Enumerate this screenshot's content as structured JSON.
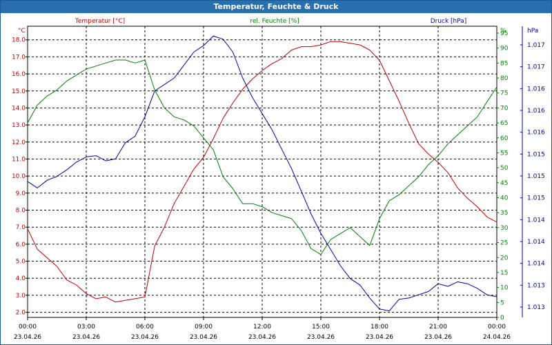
{
  "window": {
    "title": "Temperatur, Feuchte & Druck"
  },
  "colors": {
    "temperature": "#c00000",
    "humidity": "#008000",
    "pressure": "#0000a0",
    "titlebar": "#2a6fad"
  },
  "chart_data": {
    "type": "line",
    "title": "Temperatur, Feuchte & Druck",
    "legend": "top",
    "grid": true,
    "x_ticks": [
      {
        "time": "00:00",
        "date": "23.04.26"
      },
      {
        "time": "03:00",
        "date": "23.04.26"
      },
      {
        "time": "06:00",
        "date": "23.04.26"
      },
      {
        "time": "09:00",
        "date": "23.04.26"
      },
      {
        "time": "12:00",
        "date": "23.04.26"
      },
      {
        "time": "15:00",
        "date": "23.04.26"
      },
      {
        "time": "18:00",
        "date": "23.04.26"
      },
      {
        "time": "21:00",
        "date": "23.04.26"
      },
      {
        "time": "00:00",
        "date": "24.04.26"
      }
    ],
    "x_range_hours": [
      0,
      24
    ],
    "axes": {
      "temperature": {
        "label": "Temperatur [°C]",
        "unit": "°C",
        "ylim": [
          1.7,
          18.8
        ],
        "ticks": [
          "2.0",
          "3.0",
          "4.0",
          "5.0",
          "6.0",
          "7.0",
          "8.0",
          "9.0",
          "10.0",
          "11.0",
          "12.0",
          "13.0",
          "14.0",
          "15.0",
          "16.0",
          "17.0",
          "18.0"
        ]
      },
      "humidity": {
        "label": "rel. Feuchte [%]",
        "unit": "%",
        "ylim": [
          0,
          97.3
        ],
        "ticks": [
          "0",
          "5",
          "10",
          "15",
          "20",
          "25",
          "30",
          "35",
          "40",
          "45",
          "50",
          "55",
          "60",
          "65",
          "70",
          "75",
          "80",
          "85",
          "90",
          "95"
        ]
      },
      "pressure": {
        "label": "Druck [hPa]",
        "unit": "hPa",
        "ylim": [
          1012.8,
          1017.3
        ],
        "ticks": [
          "1.013",
          "1.013",
          "1.014",
          "1.014",
          "1.014",
          "1.015",
          "1.015",
          "1.015",
          "1.016",
          "1.016",
          "1.016",
          "1.017",
          "1.017"
        ]
      }
    },
    "series": [
      {
        "name": "Temperatur",
        "axis": "temperature",
        "color": "#c00000",
        "x": [
          0,
          0.5,
          1,
          1.5,
          2,
          2.5,
          3,
          3.5,
          4,
          4.5,
          5,
          5.5,
          6,
          6.5,
          7,
          7.5,
          8,
          8.5,
          9,
          9.5,
          10,
          10.5,
          11,
          11.5,
          12,
          12.5,
          13,
          13.5,
          14,
          14.5,
          15,
          15.5,
          16,
          16.5,
          17,
          17.5,
          18,
          18.5,
          19,
          19.5,
          20,
          20.5,
          21,
          21.5,
          22,
          22.5,
          23,
          23.5,
          24
        ],
        "values": [
          6.9,
          5.7,
          5.2,
          4.7,
          3.9,
          3.6,
          3.1,
          2.8,
          2.9,
          2.6,
          2.7,
          2.8,
          2.9,
          5.9,
          7.0,
          8.4,
          9.4,
          10.4,
          11.1,
          12.2,
          13.4,
          14.3,
          15.1,
          15.7,
          16.2,
          16.6,
          16.9,
          17.4,
          17.6,
          17.6,
          17.7,
          17.9,
          17.9,
          17.8,
          17.7,
          17.4,
          16.8,
          15.6,
          14.4,
          13.1,
          11.9,
          11.3,
          10.8,
          10.2,
          9.3,
          8.7,
          8.2,
          7.6,
          7.3
        ]
      },
      {
        "name": "rel. Feuchte",
        "axis": "humidity",
        "color": "#008000",
        "x": [
          0,
          0.5,
          1,
          1.5,
          2,
          2.5,
          3,
          3.5,
          4,
          4.5,
          5,
          5.5,
          6,
          6.5,
          7,
          7.5,
          8,
          8.5,
          9,
          9.5,
          10,
          10.5,
          11,
          11.5,
          12,
          12.5,
          13,
          13.5,
          14,
          14.5,
          15,
          15.5,
          16,
          16.5,
          17,
          17.5,
          18,
          18.5,
          19,
          19.5,
          20,
          20.5,
          21,
          21.5,
          22,
          22.5,
          23,
          23.5,
          24
        ],
        "values": [
          65,
          71,
          74,
          76,
          79,
          81,
          83,
          84,
          85,
          86,
          86,
          85,
          86,
          76,
          70,
          67,
          66,
          64,
          60,
          56,
          47,
          43,
          38,
          38,
          37,
          35,
          34,
          33,
          29,
          23,
          21,
          26,
          28,
          30,
          27,
          24,
          33,
          39,
          41,
          44,
          47,
          51,
          54,
          58,
          61,
          64,
          67,
          72,
          77
        ]
      },
      {
        "name": "Druck",
        "axis": "pressure",
        "color": "#0000a0",
        "x": [
          0,
          0.5,
          1,
          1.5,
          2,
          2.5,
          3,
          3.5,
          4,
          4.5,
          5,
          5.5,
          6,
          6.5,
          7,
          7.5,
          8,
          8.5,
          9,
          9.5,
          10,
          10.5,
          11,
          11.5,
          12,
          12.5,
          13,
          13.5,
          14,
          14.5,
          15,
          15.5,
          16,
          16.5,
          17,
          17.5,
          18,
          18.5,
          19,
          19.5,
          20,
          20.5,
          21,
          21.5,
          22,
          22.5,
          23,
          23.5,
          24
        ],
        "values": [
          1014.9,
          1014.8,
          1014.92,
          1014.98,
          1015.08,
          1015.2,
          1015.28,
          1015.3,
          1015.22,
          1015.25,
          1015.5,
          1015.6,
          1015.9,
          1016.3,
          1016.4,
          1016.5,
          1016.7,
          1016.9,
          1017.0,
          1017.15,
          1017.1,
          1016.9,
          1016.5,
          1016.2,
          1015.95,
          1015.7,
          1015.4,
          1015.1,
          1014.75,
          1014.4,
          1014.1,
          1013.85,
          1013.6,
          1013.4,
          1013.3,
          1013.1,
          1012.93,
          1012.9,
          1013.08,
          1013.1,
          1013.15,
          1013.2,
          1013.32,
          1013.28,
          1013.35,
          1013.32,
          1013.25,
          1013.15,
          1013.12
        ]
      }
    ]
  }
}
